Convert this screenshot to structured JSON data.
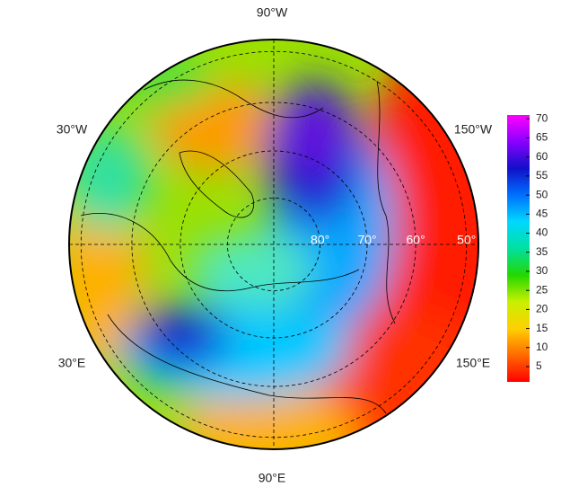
{
  "map": {
    "longitude_labels": {
      "top": "90°W",
      "upper_left": "30°W",
      "upper_right": "150°W",
      "lower_left": "30°E",
      "lower_right": "150°E",
      "bottom": "90°E"
    },
    "latitude_labels": [
      {
        "value": 80,
        "label": "80°"
      },
      {
        "value": 70,
        "label": "70°"
      },
      {
        "value": 60,
        "label": "60°"
      },
      {
        "value": 50,
        "label": "50°"
      }
    ],
    "colorbar": {
      "lim": [
        1,
        71
      ],
      "ticks": [
        5,
        10,
        15,
        20,
        25,
        30,
        35,
        40,
        45,
        50,
        55,
        60,
        65,
        70
      ],
      "colors": [
        "#ff0000",
        "#ff6a00",
        "#ffd000",
        "#c8f000",
        "#22d800",
        "#00e0a0",
        "#00d8ff",
        "#0070ff",
        "#1010c8",
        "#8a00ff",
        "#ff00ff"
      ]
    }
  }
}
